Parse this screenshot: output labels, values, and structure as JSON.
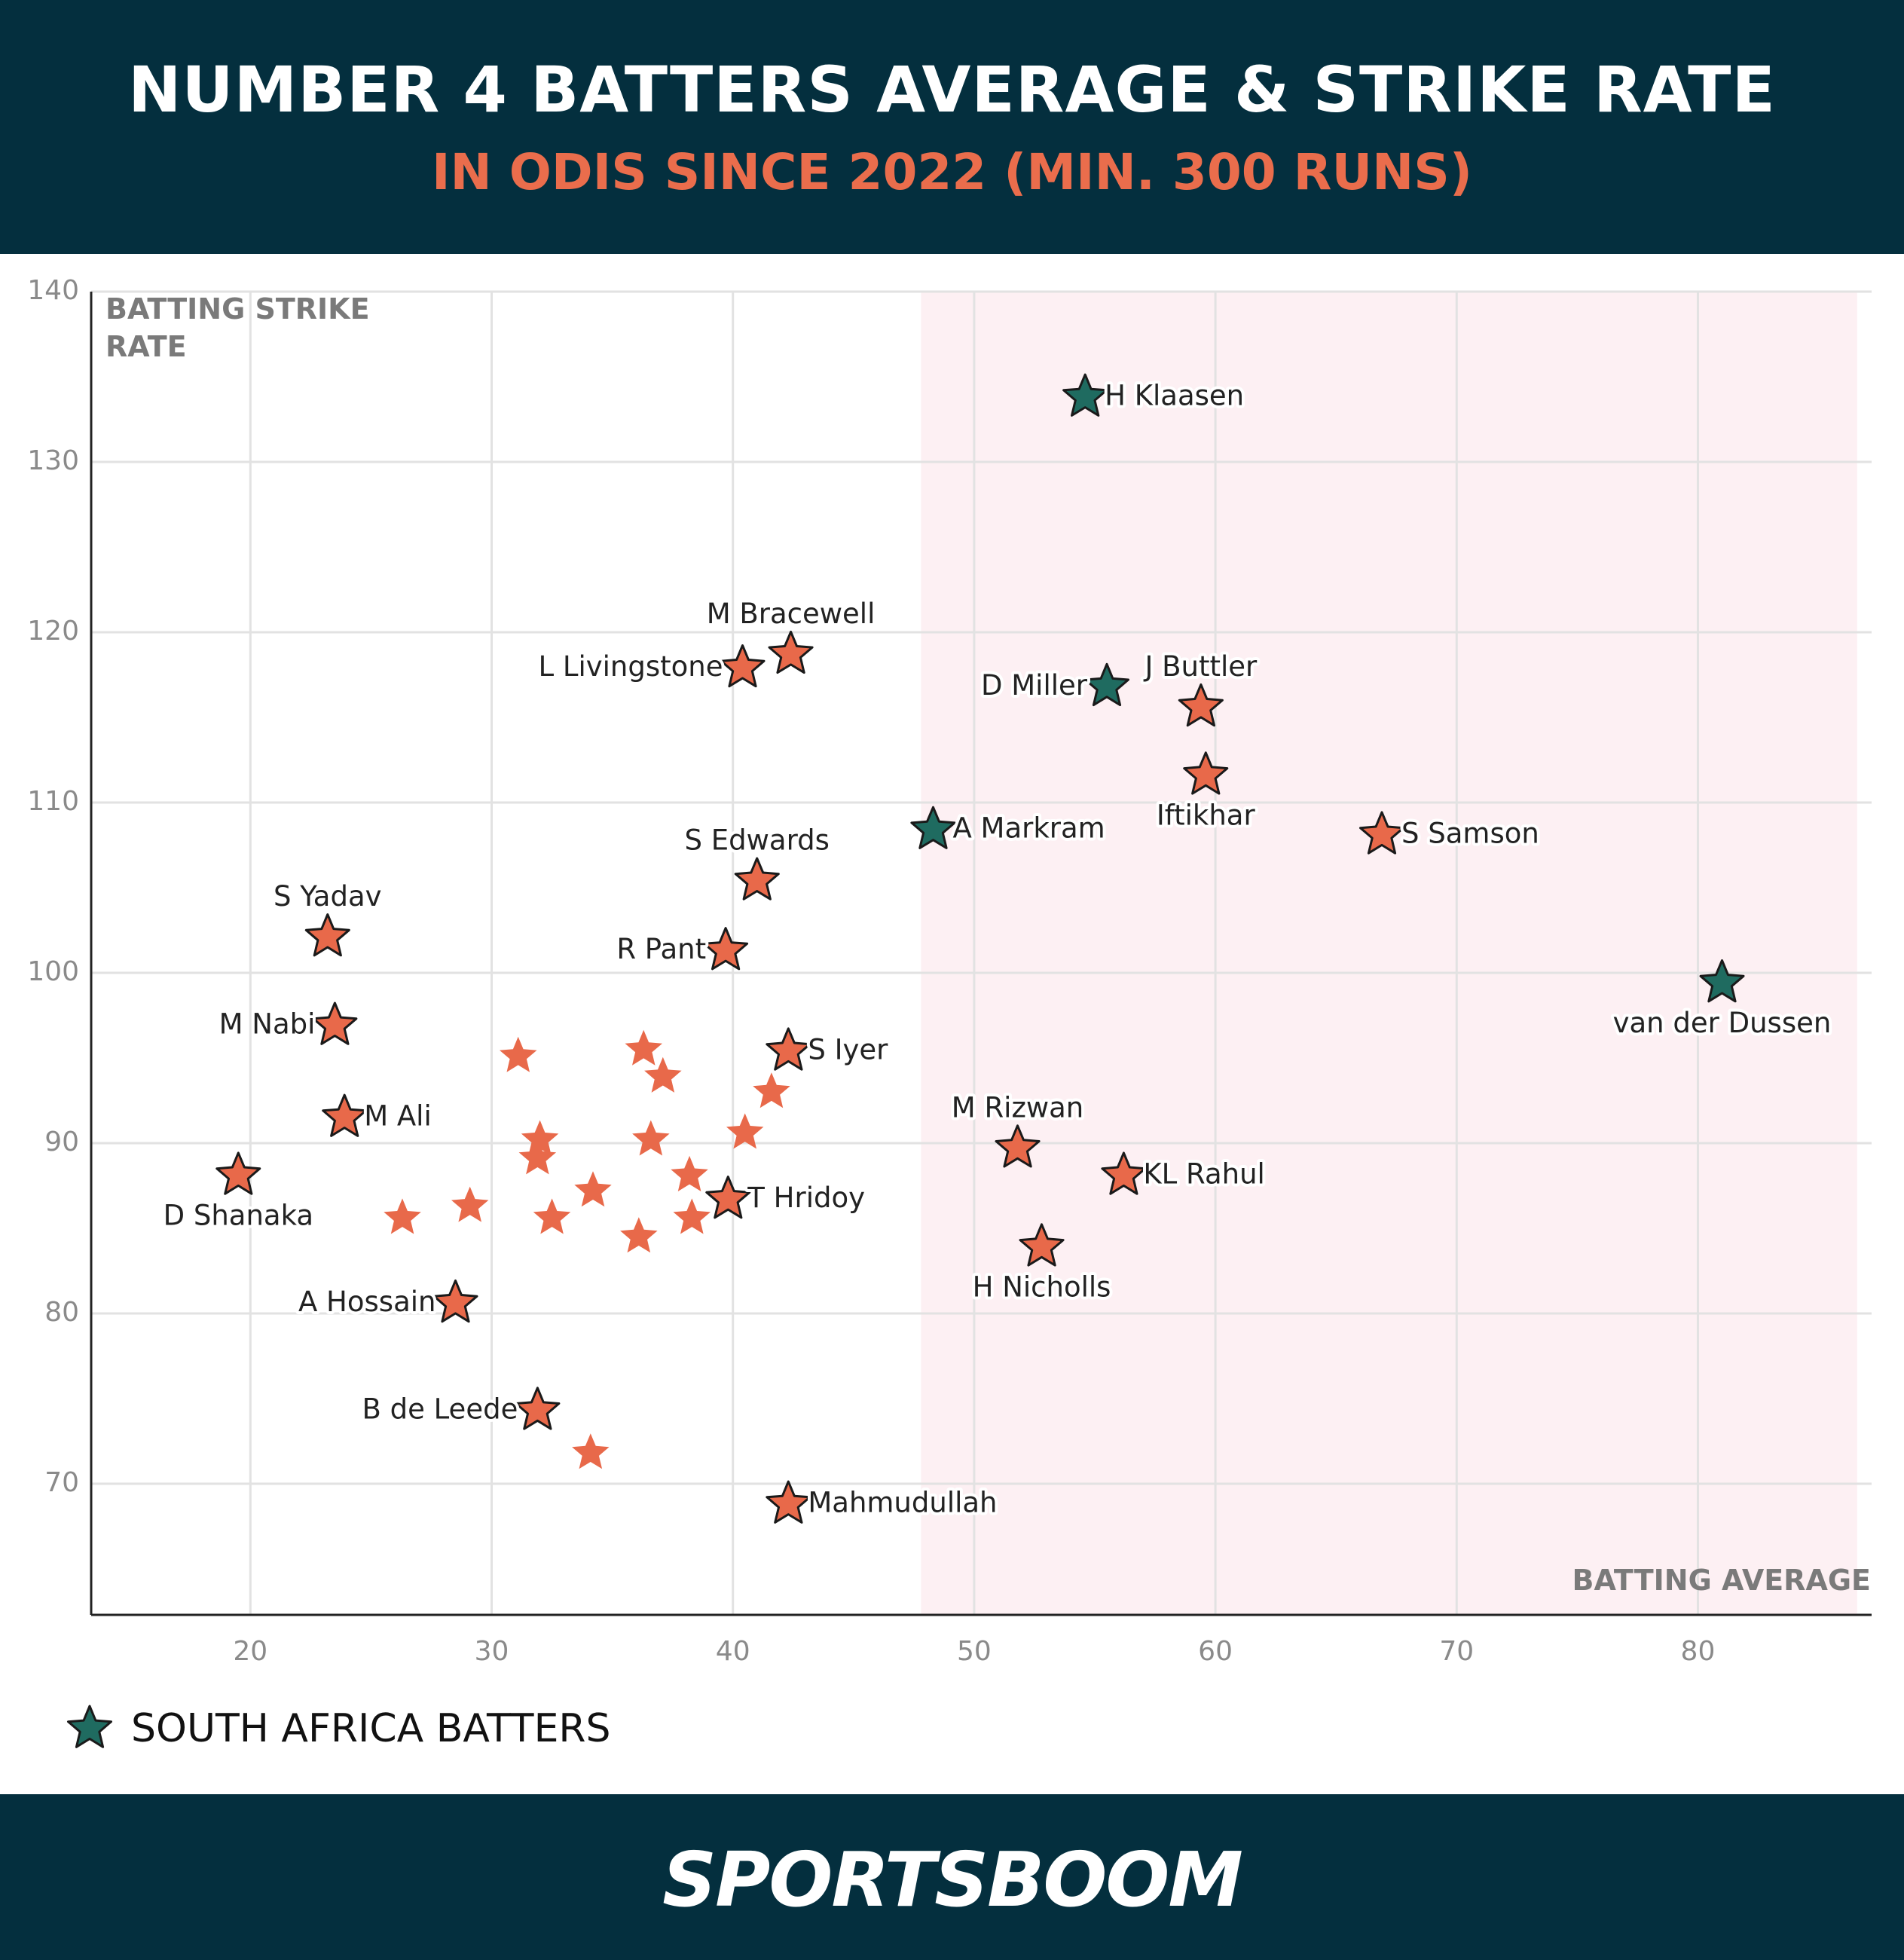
{
  "chart_data": {
    "type": "scatter",
    "title": "NUMBER 4 BATTERS AVERAGE & STRIKE RATE",
    "subtitle": "IN ODIS SINCE 2022 (MIN. 300 RUNS)",
    "x_label": "BATTING AVERAGE",
    "y_label": "BATTING STRIKE RATE",
    "xlim": [
      13.4,
      87.2
    ],
    "ylim": [
      62.3,
      140
    ],
    "xticks": [
      20,
      30,
      40,
      50,
      60,
      70,
      80
    ],
    "yticks": [
      70,
      80,
      90,
      100,
      110,
      120,
      130,
      140
    ],
    "grid": true,
    "highlight_x": [
      47.8,
      86.6
    ],
    "highlight_color": "#fdf0f3",
    "series": [
      {
        "name": "SOUTH AFRICA BATTERS",
        "color": "#1f6b60",
        "x": [
          54.6,
          55.5,
          48.3,
          81.0
        ],
        "y": [
          133.8,
          116.8,
          108.4,
          99.4
        ],
        "labels": [
          "H Klaasen",
          "D Miller",
          "A Markram",
          "van der Dussen"
        ]
      },
      {
        "color": "#e8694a",
        "x": [
          42.4,
          40.4,
          59.4,
          59.6,
          66.9,
          41.0,
          23.2,
          39.7,
          23.5,
          42.3,
          23.9,
          51.8,
          56.2,
          19.5,
          39.8,
          52.8,
          28.5,
          31.9,
          42.3,
          31.1,
          36.3,
          37.1,
          41.6,
          32.0,
          36.6,
          40.5,
          31.9,
          38.2,
          34.2,
          29.1,
          26.3,
          32.5,
          38.3,
          36.1,
          34.1
        ],
        "y": [
          118.7,
          117.9,
          115.6,
          111.6,
          108.1,
          105.4,
          102.1,
          101.3,
          96.9,
          95.4,
          91.5,
          89.7,
          88.1,
          88.1,
          86.7,
          83.9,
          80.6,
          74.3,
          68.8,
          95.1,
          95.5,
          93.9,
          93.0,
          90.2,
          90.2,
          90.6,
          89.1,
          88.1,
          87.2,
          86.3,
          85.6,
          85.6,
          85.6,
          84.5,
          71.8
        ],
        "labels": [
          "M Bracewell",
          "L Livingstone",
          "J Buttler",
          "Iftikhar",
          "S Samson",
          "S Edwards",
          "S Yadav",
          "R Pant",
          "M Nabi",
          "S Iyer",
          "M Ali",
          "M Rizwan",
          "KL Rahul",
          "D Shanaka",
          "T Hridoy",
          "H Nicholls",
          "A Hossain",
          "B de Leede",
          "Mahmudullah",
          null,
          null,
          null,
          null,
          null,
          null,
          null,
          null,
          null,
          null,
          null,
          null,
          null,
          null,
          null,
          null
        ]
      }
    ]
  },
  "brand": "SPORTSBOOM"
}
